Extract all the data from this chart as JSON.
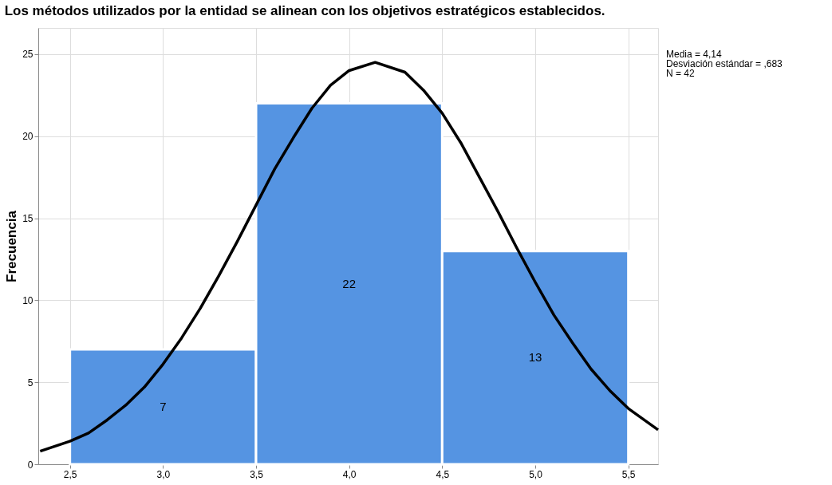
{
  "chart_data": {
    "type": "histogram",
    "title": "Los métodos utilizados por la entidad se alinean con los objetivos estratégicos establecidos.",
    "ylabel": "Frecuencia",
    "bins": [
      2.5,
      3.5,
      4.5,
      5.5
    ],
    "values": [
      7,
      22,
      13
    ],
    "color": "#5594e2",
    "value_labels": [
      "7",
      "22",
      "13"
    ],
    "series": [
      {
        "type": "line",
        "color": "#000000",
        "x": [
          2.34,
          2.5,
          2.6,
          2.7,
          2.8,
          2.9,
          3.0,
          3.1,
          3.2,
          3.3,
          3.4,
          3.5,
          3.6,
          3.7,
          3.8,
          3.9,
          4.0,
          4.14,
          4.3,
          4.4,
          4.5,
          4.6,
          4.7,
          4.8,
          4.9,
          5.0,
          5.1,
          5.2,
          5.3,
          5.4,
          5.5,
          5.66
        ],
        "values": [
          0.8,
          1.4,
          1.9,
          2.7,
          3.6,
          4.7,
          6.1,
          7.7,
          9.5,
          11.5,
          13.6,
          15.8,
          18.0,
          19.9,
          21.7,
          23.1,
          24.0,
          24.5,
          23.9,
          22.8,
          21.4,
          19.6,
          17.5,
          15.4,
          13.2,
          11.1,
          9.1,
          7.4,
          5.8,
          4.5,
          3.4,
          2.1
        ]
      }
    ],
    "xlim": [
      2.33,
      5.66
    ],
    "ylim": [
      0,
      26.6
    ],
    "xticks": [
      {
        "value": 2.5,
        "label": "2,5"
      },
      {
        "value": 3.0,
        "label": "3,0"
      },
      {
        "value": 3.5,
        "label": "3,5"
      },
      {
        "value": 4.0,
        "label": "4,0"
      },
      {
        "value": 4.5,
        "label": "4,5"
      },
      {
        "value": 5.0,
        "label": "5,0"
      },
      {
        "value": 5.5,
        "label": "5,5"
      }
    ],
    "yticks": [
      0,
      5,
      10,
      15,
      20,
      25
    ],
    "grid": true,
    "annotations": [
      "Media = 4,14",
      "Desviación estándar = ,683",
      "N = 42"
    ]
  }
}
